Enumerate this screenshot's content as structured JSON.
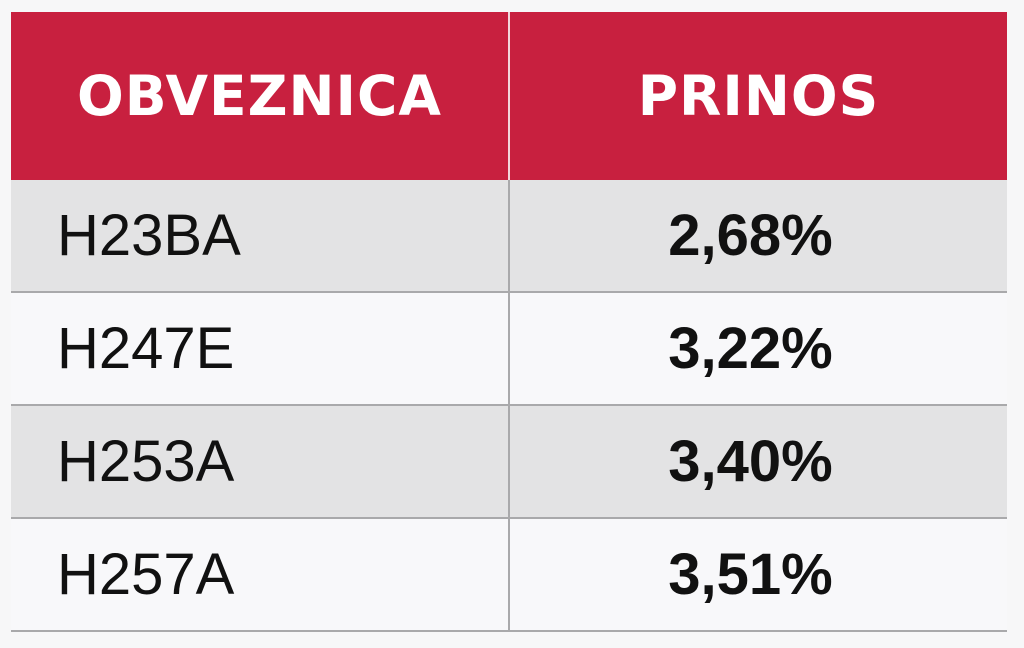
{
  "table": {
    "headers": [
      "OBVEZNICA",
      "PRINOS"
    ],
    "rows": [
      {
        "bond": "H23BA",
        "yield": "2,68%"
      },
      {
        "bond": "H247E",
        "yield": "3,22%"
      },
      {
        "bond": "H253A",
        "yield": "3,40%"
      },
      {
        "bond": "H257A",
        "yield": "3,51%"
      }
    ]
  },
  "colors": {
    "header_bg": "#c8203f",
    "header_text": "#ffffff",
    "row_shaded": "#e3e3e4",
    "row_plain": "#f8f8fa",
    "grid": "#a9a9ab"
  }
}
